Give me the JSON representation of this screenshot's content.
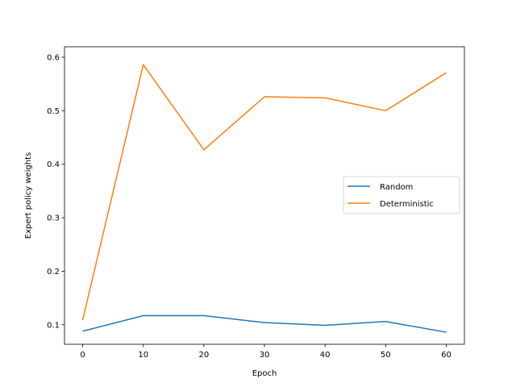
{
  "chart_data": {
    "type": "line",
    "title": "",
    "xlabel": "Epoch",
    "ylabel": "Expert policy weights",
    "x": [
      0,
      10,
      20,
      30,
      40,
      50,
      60
    ],
    "xlim": [
      -3,
      63
    ],
    "ylim": [
      0.0635,
      0.6195
    ],
    "xticks": [
      0,
      10,
      20,
      30,
      40,
      50,
      60
    ],
    "xtick_labels": [
      "0",
      "10",
      "20",
      "30",
      "40",
      "50",
      "60"
    ],
    "yticks": [
      0.1,
      0.2,
      0.3,
      0.4,
      0.5,
      0.6
    ],
    "ytick_labels": [
      "0.1",
      "0.2",
      "0.3",
      "0.4",
      "0.5",
      "0.6"
    ],
    "grid": false,
    "legend_position": "center-right",
    "series": [
      {
        "name": "Random",
        "color": "#1f77b4",
        "values": [
          0.088,
          0.117,
          0.117,
          0.104,
          0.099,
          0.106,
          0.086
        ]
      },
      {
        "name": "Deterministic",
        "color": "#ff7f0e",
        "values": [
          0.109,
          0.586,
          0.427,
          0.526,
          0.524,
          0.5,
          0.571
        ]
      }
    ]
  }
}
